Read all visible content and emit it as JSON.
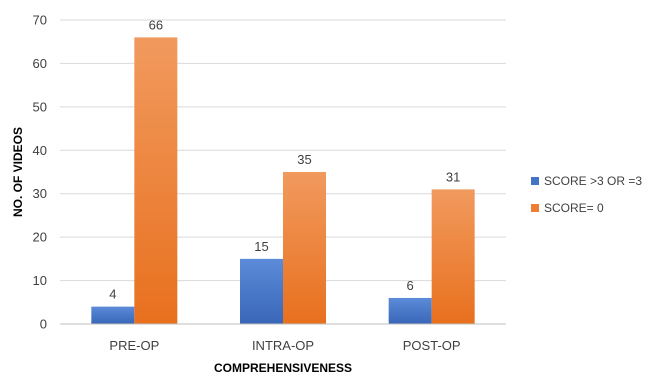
{
  "chart_data": {
    "type": "bar",
    "categories": [
      "PRE-OP",
      "INTRA-OP",
      "POST-OP"
    ],
    "series": [
      {
        "name": "SCORE >3 OR =3",
        "values": [
          4,
          15,
          6
        ],
        "color": "#4472C4"
      },
      {
        "name": "SCORE= 0",
        "values": [
          66,
          35,
          31
        ],
        "color": "#ED7D31"
      }
    ],
    "xlabel": "COMPREHENSIVENESS",
    "ylabel": "NO. OF VIDEOS",
    "ylim": [
      0,
      70
    ],
    "yticks": [
      0,
      10,
      20,
      30,
      40,
      50,
      60,
      70
    ],
    "grid": true,
    "legend": "right",
    "data_labels": true
  }
}
